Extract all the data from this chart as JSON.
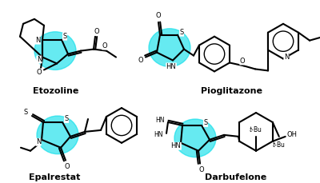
{
  "background": "#ffffff",
  "hc": "#00dde8",
  "ha": 0.6,
  "bc": "#000000",
  "bw": 1.5,
  "afs": 6.0,
  "lfs": 8.0,
  "fig_w": 4.0,
  "fig_h": 2.29,
  "dpi": 100,
  "compounds": [
    "Etozoline",
    "Pioglitazone",
    "Epalrestat",
    "Darbufelone"
  ]
}
